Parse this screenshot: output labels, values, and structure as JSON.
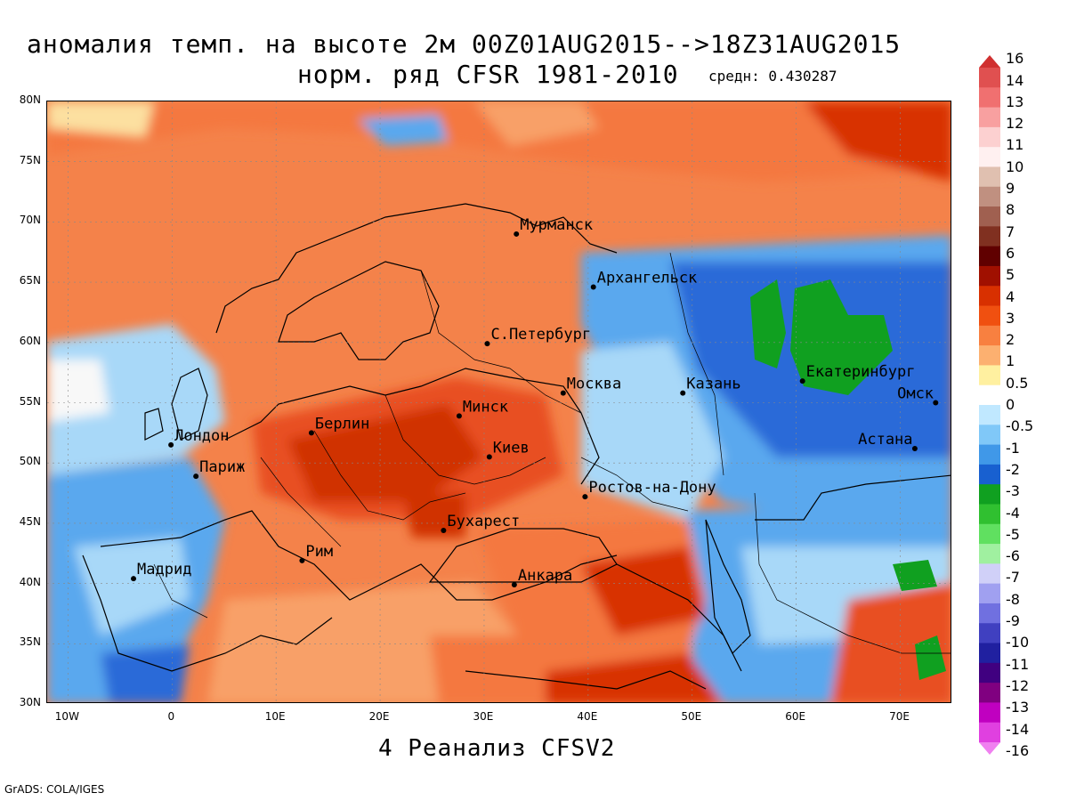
{
  "title": {
    "line1": "аномалия темп. на высоте 2м 00Z01AUG2015-->18Z31AUG2015",
    "line2": "норм. ряд CFSR 1981-2010",
    "mean_label": "средн: 0.430287"
  },
  "subtitle": "4 Реанализ CFSV2",
  "footer": "GrADS: COLA/IGES",
  "map": {
    "lon_range": [
      -12,
      75
    ],
    "lat_range": [
      30,
      80
    ],
    "lat_ticks": [
      "80N",
      "75N",
      "70N",
      "65N",
      "60N",
      "55N",
      "50N",
      "45N",
      "40N",
      "35N",
      "30N"
    ],
    "lon_ticks": [
      "10W",
      "0",
      "10E",
      "20E",
      "30E",
      "40E",
      "50E",
      "60E",
      "70E"
    ],
    "grid_lines": "dotted",
    "cities": [
      {
        "name": "Мурманск",
        "lon": 33.1,
        "lat": 69.0
      },
      {
        "name": "Архангельск",
        "lon": 40.5,
        "lat": 64.6
      },
      {
        "name": "С.Петербург",
        "lon": 30.3,
        "lat": 59.9
      },
      {
        "name": "Москва",
        "lon": 37.6,
        "lat": 55.8
      },
      {
        "name": "Казань",
        "lon": 49.1,
        "lat": 55.8
      },
      {
        "name": "Екатеринбург",
        "lon": 60.6,
        "lat": 56.8
      },
      {
        "name": "Омск",
        "lon": 73.4,
        "lat": 55.0
      },
      {
        "name": "Астана",
        "lon": 71.4,
        "lat": 51.2
      },
      {
        "name": "Минск",
        "lon": 27.6,
        "lat": 53.9
      },
      {
        "name": "Берлин",
        "lon": 13.4,
        "lat": 52.5
      },
      {
        "name": "Лондон",
        "lon": -0.1,
        "lat": 51.5
      },
      {
        "name": "Париж",
        "lon": 2.3,
        "lat": 48.9
      },
      {
        "name": "Киев",
        "lon": 30.5,
        "lat": 50.5
      },
      {
        "name": "Ростов-на-Дону",
        "lon": 39.7,
        "lat": 47.2
      },
      {
        "name": "Бухарест",
        "lon": 26.1,
        "lat": 44.4
      },
      {
        "name": "Рим",
        "lon": 12.5,
        "lat": 41.9
      },
      {
        "name": "Мадрид",
        "lon": -3.7,
        "lat": 40.4
      },
      {
        "name": "Анкара",
        "lon": 32.9,
        "lat": 39.9
      }
    ]
  },
  "colorbar": {
    "levels": [
      "16",
      "14",
      "13",
      "12",
      "11",
      "10",
      "9",
      "8",
      "7",
      "6",
      "5",
      "4",
      "3",
      "2",
      "1",
      "0.5",
      "0",
      "-0.5",
      "-1",
      "-2",
      "-3",
      "-4",
      "-5",
      "-6",
      "-7",
      "-8",
      "-9",
      "-10",
      "-11",
      "-12",
      "-13",
      "-14",
      "-16"
    ],
    "colors": [
      "#d03030",
      "#e05050",
      "#f07070",
      "#f8a0a0",
      "#fcd0d0",
      "#fff0f0",
      "#e0c0b0",
      "#c09080",
      "#a06050",
      "#803020",
      "#600000",
      "#a01000",
      "#d83000",
      "#f05010",
      "#f88040",
      "#fcb070",
      "#fff0a0",
      "#ffffff",
      "#c0e8ff",
      "#80c8f8",
      "#4098e8",
      "#1860d0",
      "#10a020",
      "#30c030",
      "#60e060",
      "#a0f0a0",
      "#d0d0f8",
      "#a0a0f0",
      "#7070e0",
      "#4040c0",
      "#2020a0",
      "#400080",
      "#800080",
      "#c000c0",
      "#e040e0",
      "#f080f0"
    ]
  },
  "anomaly_colors": {
    "deep_red": "#d03000",
    "red": "#e85020",
    "orange": "#f47840",
    "light_orange": "#f8a068",
    "pale": "#fce0a0",
    "white": "#f8f8f8",
    "light_blue": "#a8d8f8",
    "blue": "#5aa8ee",
    "dark_blue": "#2a6ad8",
    "green": "#10a020"
  }
}
